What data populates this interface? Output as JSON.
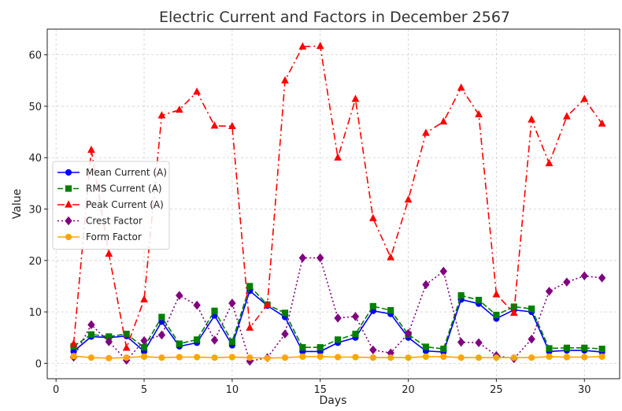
{
  "chart_data": {
    "type": "line",
    "title": "Electric Current and Factors in December 2567",
    "xlabel": "Days",
    "ylabel": "Value",
    "xlim": [
      -0.5,
      32
    ],
    "ylim": [
      -3,
      65
    ],
    "xticks": [
      0,
      5,
      10,
      15,
      20,
      25,
      30
    ],
    "yticks": [
      0,
      10,
      20,
      30,
      40,
      50,
      60
    ],
    "grid": true,
    "legend_position": "center-left",
    "x": [
      1,
      2,
      3,
      4,
      5,
      6,
      7,
      8,
      9,
      10,
      11,
      12,
      13,
      14,
      15,
      16,
      17,
      18,
      19,
      20,
      21,
      22,
      23,
      24,
      25,
      26,
      27,
      28,
      29,
      30,
      31
    ],
    "series": [
      {
        "name": "Mean Current (A)",
        "color": "#0000ff",
        "line_style": "solid",
        "marker": "circle",
        "values": [
          2.3,
          5.2,
          5.0,
          5.3,
          2.3,
          8.1,
          3.3,
          4.0,
          9.3,
          3.5,
          14.1,
          11.2,
          9.0,
          2.3,
          2.3,
          4.0,
          5.0,
          10.2,
          9.6,
          5.0,
          2.4,
          2.2,
          12.4,
          11.6,
          8.7,
          10.4,
          10.0,
          2.3,
          2.5,
          2.5,
          2.2
        ]
      },
      {
        "name": "RMS Current (A)",
        "color": "#008000",
        "line_style": "dashed",
        "marker": "square",
        "values": [
          3.3,
          5.6,
          5.2,
          5.7,
          3.1,
          9.0,
          3.8,
          4.6,
          10.2,
          4.2,
          15.0,
          11.4,
          9.8,
          3.1,
          3.1,
          4.6,
          5.7,
          11.1,
          10.3,
          5.6,
          3.2,
          2.8,
          13.2,
          12.3,
          9.4,
          11.0,
          10.6,
          2.9,
          3.0,
          3.0,
          2.8
        ]
      },
      {
        "name": "Peak Current (A)",
        "color": "#ff0000",
        "line_style": "dashdot",
        "marker": "triangle",
        "values": [
          3.8,
          41.5,
          21.3,
          3.0,
          12.4,
          48.2,
          49.3,
          52.8,
          46.2,
          46.1,
          6.9,
          11.4,
          55.0,
          61.6,
          61.7,
          40.0,
          51.4,
          28.2,
          20.6,
          31.8,
          44.8,
          47.0,
          53.6,
          48.4,
          13.4,
          9.8,
          47.4,
          38.9,
          48.0,
          51.4,
          46.6
        ]
      },
      {
        "name": "Crest Factor",
        "color": "#800080",
        "line_style": "dotted",
        "marker": "diamond",
        "values": [
          1.2,
          7.5,
          4.2,
          0.6,
          4.4,
          5.5,
          13.2,
          11.3,
          4.5,
          11.7,
          0.4,
          1.1,
          5.7,
          20.5,
          20.5,
          8.8,
          9.1,
          2.6,
          2.0,
          5.8,
          15.3,
          17.9,
          4.1,
          4.0,
          1.5,
          0.9,
          4.7,
          14.0,
          15.8,
          17.0,
          16.6
        ]
      },
      {
        "name": "Form Factor",
        "color": "#ffa500",
        "line_style": "solid",
        "marker": "circle",
        "values": [
          1.4,
          1.1,
          1.0,
          1.1,
          1.3,
          1.1,
          1.2,
          1.2,
          1.1,
          1.2,
          1.1,
          1.0,
          1.1,
          1.3,
          1.3,
          1.2,
          1.2,
          1.1,
          1.1,
          1.1,
          1.3,
          1.3,
          1.1,
          1.1,
          1.1,
          1.1,
          1.1,
          1.3,
          1.2,
          1.2,
          1.3
        ]
      }
    ]
  }
}
